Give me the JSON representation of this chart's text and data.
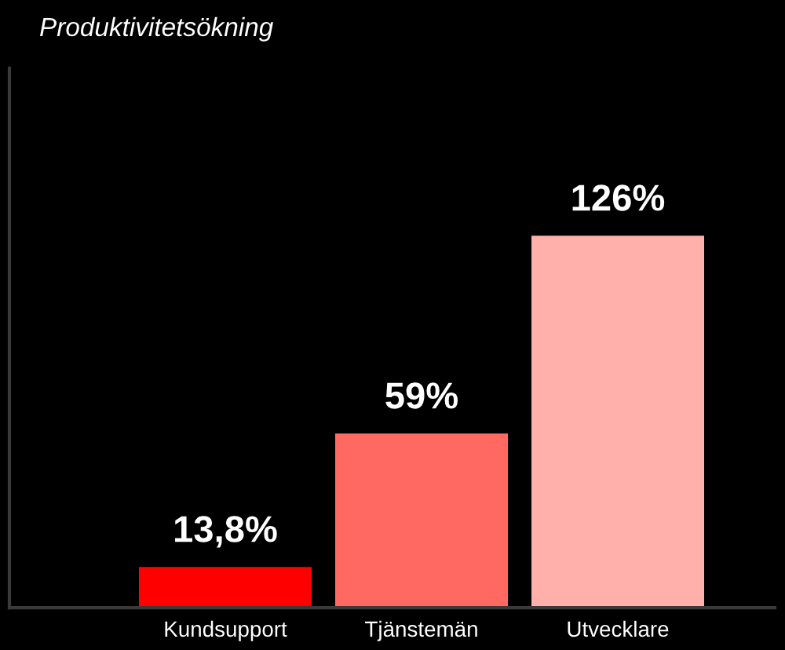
{
  "chart_data": {
    "type": "bar",
    "title": "Produktivitetsökning",
    "categories": [
      "Kundsupport",
      "Tjänstemän",
      "Utvecklare"
    ],
    "values": [
      13.8,
      59,
      126
    ],
    "colors": [
      "#ff0000",
      "#ff6961",
      "#ffb0aa"
    ],
    "value_labels": [
      "13,8%",
      "59%",
      "126%"
    ],
    "grid": false,
    "legend": false
  }
}
